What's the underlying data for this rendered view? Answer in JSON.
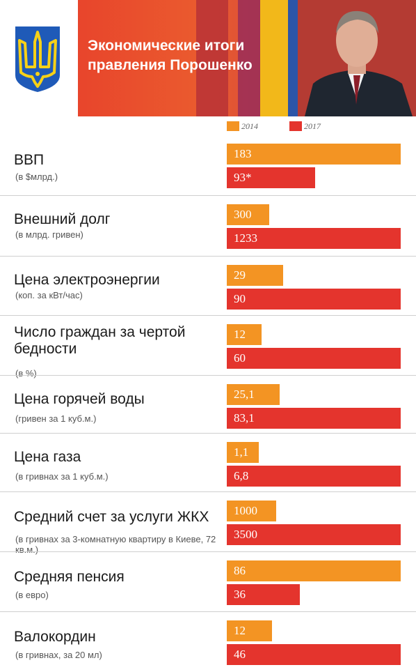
{
  "header": {
    "title_line1": "Экономические итоги",
    "title_line2": "правления Порошенко"
  },
  "colors": {
    "c2014": "#f39423",
    "c2017": "#e4342d",
    "banner": "#e8452c",
    "coat_blue": "#1f5ab8",
    "coat_yellow": "#f7d117"
  },
  "chart_data": {
    "type": "bar",
    "orientation": "horizontal",
    "series": [
      {
        "name": "2014",
        "values": [
          183,
          300,
          29,
          12,
          25.1,
          1.1,
          1000,
          86,
          12
        ]
      },
      {
        "name": "2017",
        "values": [
          93,
          1233,
          90,
          60,
          83.1,
          6.8,
          3500,
          36,
          46
        ]
      }
    ],
    "categories": [
      {
        "title": "ВВП",
        "subtitle": "(в $млрд.)",
        "labels": [
          "183",
          "93*"
        ]
      },
      {
        "title": "Внешний долг",
        "subtitle": "(в млрд. гривен)",
        "labels": [
          "300",
          "1233"
        ]
      },
      {
        "title": "Цена электроэнергии",
        "subtitle": "(коп. за кВт/час)",
        "labels": [
          "29",
          "90"
        ]
      },
      {
        "title": "Число граждан за чертой бедности",
        "subtitle": "(в %)",
        "labels": [
          "12",
          "60"
        ]
      },
      {
        "title": "Цена горячей воды",
        "subtitle": "(гривен за 1 куб.м.)",
        "labels": [
          "25,1",
          "83,1"
        ]
      },
      {
        "title": "Цена газа",
        "subtitle": "(в гривнах за 1 куб.м.)",
        "labels": [
          "1,1",
          "6,8"
        ]
      },
      {
        "title": "Средний счет за услуги ЖКХ",
        "subtitle": "(в гривнах за 3-комнатную квартиру в Киеве, 72 кв.м.)",
        "labels": [
          "1000",
          "3500"
        ]
      },
      {
        "title": "Средняя пенсия",
        "subtitle": "(в евро)",
        "labels": [
          "86",
          "36"
        ]
      },
      {
        "title": "Валокордин",
        "subtitle": "(в гривнах, за 20 мл)",
        "labels": [
          "12",
          "46"
        ]
      }
    ]
  }
}
